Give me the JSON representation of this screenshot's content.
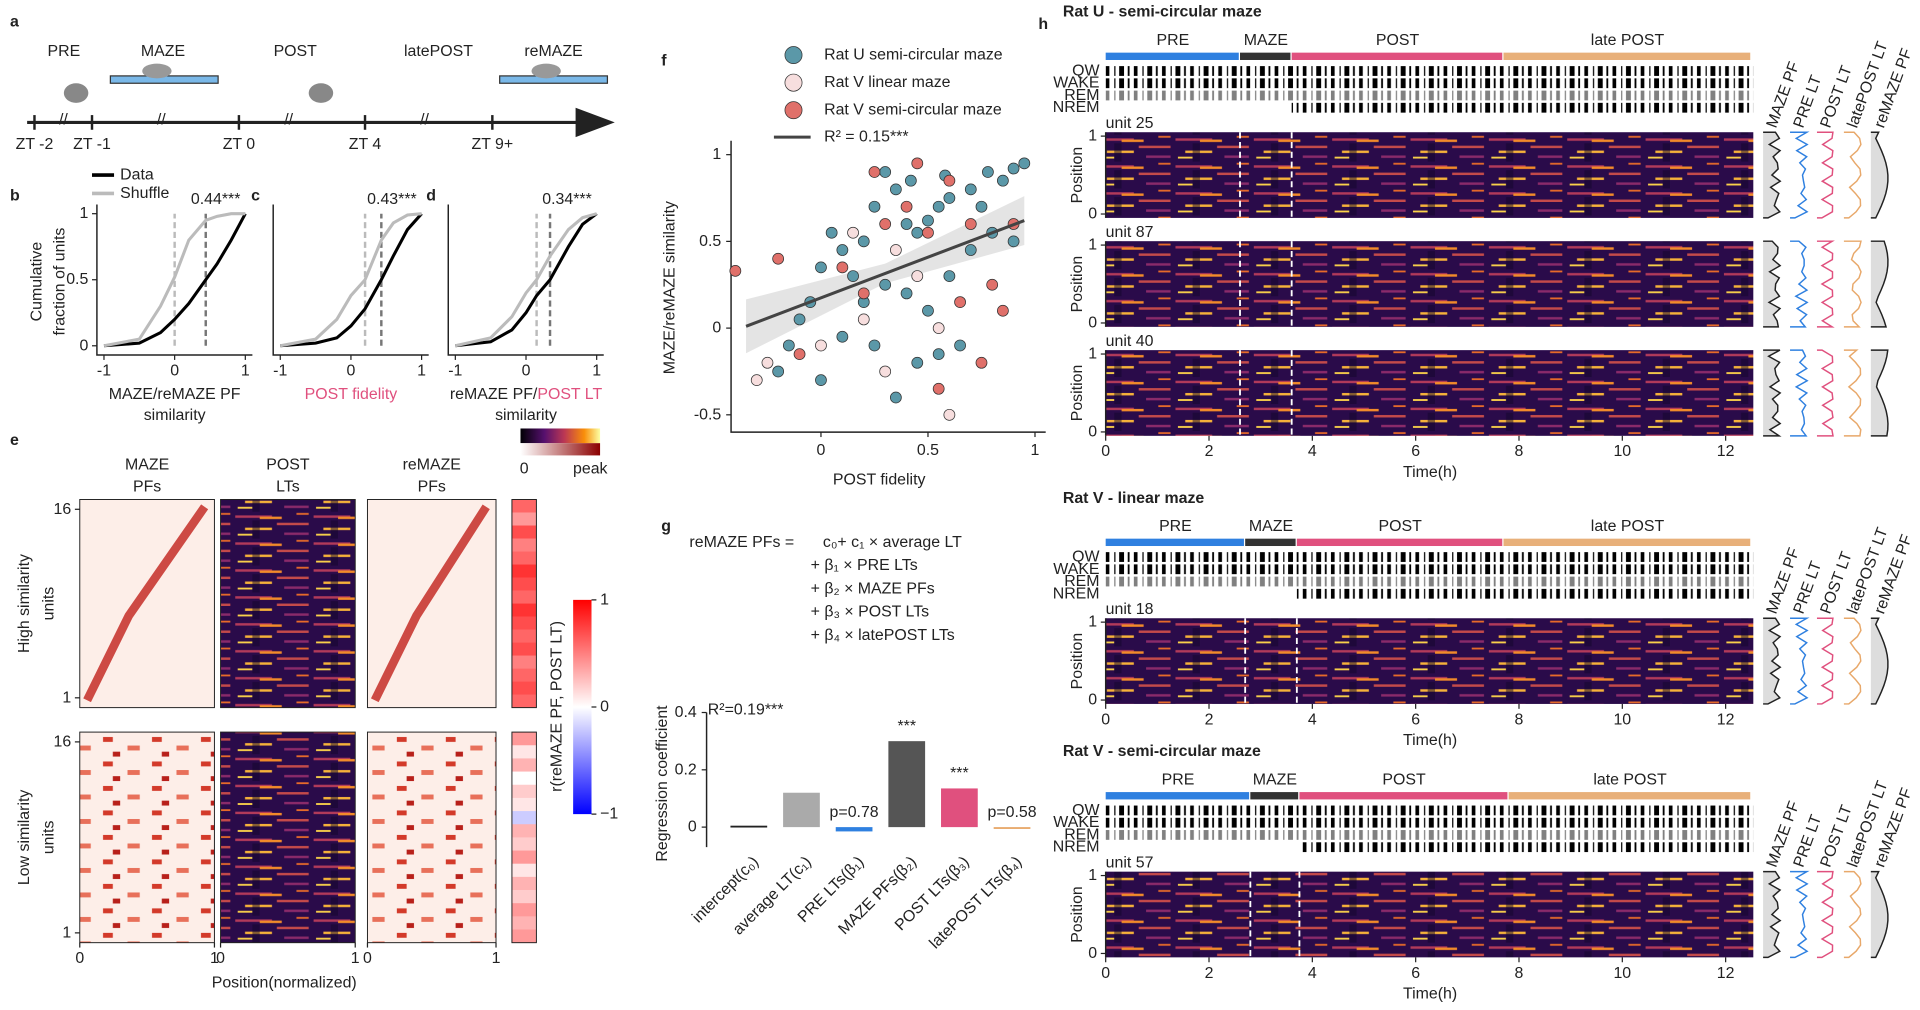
{
  "panel_labels": [
    "a",
    "b",
    "c",
    "d",
    "e",
    "f",
    "g",
    "h"
  ],
  "timeline": {
    "epochs": [
      {
        "text": "PRE",
        "color": "#2f80e0"
      },
      {
        "text": "MAZE",
        "color": "#222222"
      },
      {
        "text": "POST",
        "color": "#e0507e"
      },
      {
        "text": "latePOST",
        "color": "#e8a86a"
      },
      {
        "text": "reMAZE",
        "color": "#222222"
      }
    ],
    "ticks": [
      "ZT -2",
      "ZT -1",
      "ZT 0",
      "ZT 4",
      "ZT 9+"
    ]
  },
  "chart_data": [
    {
      "type": "line",
      "legend": true,
      "xlim": [
        -1.1,
        1.1
      ],
      "ylim": [
        -0.07,
        1.07
      ],
      "xticks": [
        -1,
        0,
        1
      ],
      "yticks": [
        0,
        0.5,
        1
      ],
      "ylabel": [
        "Cumulative",
        "fraction of units"
      ],
      "xlabel": [
        [
          {
            "text": "MAZE/reMAZE PF"
          }
        ],
        [
          {
            "text": "similarity"
          }
        ]
      ],
      "x": [
        -1,
        -0.5,
        -0.2,
        0,
        0.2,
        0.44,
        0.6,
        0.8,
        1
      ],
      "series": [
        {
          "name": "Data",
          "color": "#000000",
          "values": [
            0,
            0.02,
            0.1,
            0.2,
            0.32,
            0.5,
            0.62,
            0.8,
            1
          ]
        },
        {
          "name": "Shuffle",
          "color": "#bbbbbb",
          "values": [
            0,
            0.05,
            0.3,
            0.52,
            0.8,
            0.95,
            0.98,
            1,
            1
          ]
        }
      ],
      "medians": [
        0,
        0.44
      ],
      "annotation": "0.44***"
    },
    {
      "type": "line",
      "xlim": [
        -1.1,
        1.1
      ],
      "ylim": [
        -0.07,
        1.07
      ],
      "xticks": [
        -1,
        0,
        1
      ],
      "xlabel": [
        [
          {
            "text": "POST fidelity",
            "color": "#e0507e"
          }
        ]
      ],
      "x": [
        -1,
        -0.5,
        -0.2,
        0,
        0.2,
        0.43,
        0.6,
        0.8,
        1
      ],
      "series": [
        {
          "color": "#000000",
          "values": [
            0,
            0.02,
            0.06,
            0.15,
            0.28,
            0.5,
            0.68,
            0.88,
            1
          ]
        },
        {
          "color": "#bbbbbb",
          "values": [
            0,
            0.05,
            0.2,
            0.38,
            0.5,
            0.8,
            0.93,
            0.99,
            1
          ]
        }
      ],
      "medians": [
        0.2,
        0.43
      ],
      "annotation": "0.43***"
    },
    {
      "type": "line",
      "xlim": [
        -1.1,
        1.1
      ],
      "ylim": [
        -0.07,
        1.07
      ],
      "xticks": [
        -1,
        0,
        1
      ],
      "xlabel": [
        [
          {
            "text": "reMAZE PF/"
          },
          {
            "text": "POST LT",
            "color": "#e0507e"
          }
        ],
        [
          {
            "text": "similarity"
          }
        ]
      ],
      "x": [
        -1,
        -0.5,
        -0.2,
        0,
        0.15,
        0.34,
        0.6,
        0.8,
        1
      ],
      "series": [
        {
          "color": "#000000",
          "values": [
            0,
            0.03,
            0.12,
            0.25,
            0.38,
            0.5,
            0.75,
            0.92,
            1
          ]
        },
        {
          "color": "#bbbbbb",
          "values": [
            0,
            0.06,
            0.22,
            0.4,
            0.5,
            0.68,
            0.88,
            0.97,
            1
          ]
        }
      ],
      "medians": [
        0.15,
        0.34
      ],
      "annotation": "0.34***"
    },
    {
      "type": "heatmap",
      "columns": [
        {
          "title": [
            "MAZE",
            "PFs"
          ],
          "color": "#222222"
        },
        {
          "title": [
            "POST",
            "LTs"
          ],
          "color": "#e0507e"
        },
        {
          "title": [
            "reMAZE",
            "PFs"
          ],
          "color": "#222222"
        }
      ],
      "groups": [
        {
          "label": [
            "High similarity",
            "units"
          ],
          "yticks": [
            16,
            1
          ],
          "r": [
            0.6,
            0.4,
            0.7,
            0.5,
            0.6,
            0.8,
            0.7,
            0.6,
            0.8,
            0.7,
            0.6,
            0.7,
            0.5,
            0.6,
            0.7,
            0.6
          ]
        },
        {
          "label": [
            "Low similarity",
            "units"
          ],
          "yticks": [
            16,
            1
          ],
          "r": [
            0.4,
            0.1,
            0.3,
            0.0,
            0.2,
            0.1,
            -0.2,
            0.3,
            0.2,
            0.4,
            0.1,
            0.3,
            0.2,
            0.4,
            0.3,
            0.4
          ]
        }
      ],
      "xticks": [
        0,
        1
      ],
      "xlabel": "Position(normalized)",
      "colorbar": {
        "min": 0,
        "max": "peak"
      },
      "r_colorbar": {
        "label": "r(reMAZE PF, POST LT)",
        "lim": [
          -1,
          1
        ],
        "ticks": [
          1,
          0,
          {
            "value": -1,
            "label": "−1"
          }
        ]
      }
    },
    {
      "type": "scatter",
      "xlim": [
        -0.42,
        1.05
      ],
      "ylim": [
        -0.6,
        1.08
      ],
      "xticks": [
        0,
        0.5,
        1
      ],
      "yticks": [
        -0.5,
        0,
        0.5,
        1
      ],
      "xlabel": "POST fidelity",
      "xlabel_color": "#e0507e",
      "ylabel": "MAZE/reMAZE similarity",
      "series": [
        {
          "name": "Rat U semi-circular maze",
          "color": "#5b98a8",
          "x": [
            0.9,
            0.85,
            0.95,
            0.78,
            0.7,
            0.6,
            0.55,
            0.5,
            0.45,
            0.4,
            0.35,
            0.3,
            0.25,
            0.2,
            0.1,
            0.05,
            0,
            -0.05,
            -0.1,
            -0.15,
            -0.2,
            0,
            0.1,
            0.2,
            0.3,
            0.4,
            0.5,
            0.6,
            0.7,
            0.8,
            0.65,
            0.55,
            0.35,
            0.45,
            0.25,
            0.15,
            0.9,
            0.75,
            0.58,
            0.42
          ],
          "values": [
            0.92,
            0.85,
            0.95,
            0.9,
            0.8,
            0.75,
            0.7,
            0.62,
            0.55,
            0.6,
            0.8,
            0.9,
            0.7,
            0.5,
            0.45,
            0.55,
            0.35,
            0.15,
            0.05,
            -0.1,
            -0.25,
            -0.3,
            -0.05,
            0.15,
            0.25,
            0.2,
            0.1,
            0.3,
            0.45,
            0.55,
            -0.1,
            -0.15,
            -0.4,
            -0.2,
            -0.1,
            0.3,
            0.5,
            0.7,
            0.88,
            0.85
          ]
        },
        {
          "name": "Rat V linear maze",
          "color": "#f7dede",
          "x": [
            -0.3,
            -0.25,
            0,
            0.2,
            0.35,
            0.45,
            0.55,
            0.6,
            0.3,
            0.15
          ],
          "values": [
            -0.3,
            -0.2,
            -0.1,
            0.05,
            0.45,
            0.3,
            0,
            -0.5,
            -0.25,
            0.55
          ]
        },
        {
          "name": "Rat V semi-circular maze",
          "color": "#e0706a",
          "x": [
            -0.4,
            -0.2,
            -0.1,
            0.1,
            0.25,
            0.4,
            0.5,
            0.6,
            0.7,
            0.8,
            0.85,
            0.9,
            0.75,
            0.55,
            0.3,
            0.2,
            0.65,
            0.45
          ],
          "values": [
            0.33,
            0.4,
            -0.15,
            0.35,
            0.9,
            0.7,
            0.55,
            0.85,
            0.6,
            0.25,
            0.1,
            0.6,
            -0.2,
            -0.35,
            0.6,
            0.2,
            0.15,
            0.95
          ]
        }
      ],
      "fit": {
        "name": "R² = 0.15***",
        "color": "#444444",
        "x": [
          -0.35,
          0.95
        ],
        "values": [
          0.01,
          0.62
        ]
      }
    },
    {
      "type": "bar",
      "ylim": [
        -0.07,
        0.4
      ],
      "yticks": [
        0,
        0.2,
        0.4
      ],
      "ylabel": "Regression coefficient",
      "stat": "R²=0.19***",
      "equation": {
        "lhs": "reMAZE PFs =",
        "terms": [
          {
            "text": "c₀+ c₁ × average LT",
            "color": "#888888"
          },
          {
            "text": "+ β₁ × PRE LTs",
            "color": "#2f80e0"
          },
          {
            "text": "+ β₂ × MAZE PFs",
            "color": "#222222"
          },
          {
            "text": "+ β₃ × POST LTs",
            "color": "#e0507e"
          },
          {
            "text": "+ β₄ × latePOST LTs",
            "color": "#e8a86a"
          }
        ]
      },
      "categories": [
        "intercept(c₀)",
        "average LT(c₁)",
        "PRE LTs(β₁)",
        "MAZE PFs(β₂)",
        "POST LTs(β₃)",
        "latePOST LTs(β₄)"
      ],
      "label_colors": [
        "#222222",
        "#222222",
        "#2f80e0",
        "#222222",
        "#e0507e",
        "#e8a86a"
      ],
      "colors": [
        "#222222",
        "#aaaaaa",
        "#2f80e0",
        "#555555",
        "#e0507e",
        "#e8a86a"
      ],
      "values": [
        0.005,
        0.12,
        -0.015,
        0.3,
        0.135,
        -0.005
      ],
      "significance": [
        null,
        null,
        "p=0.78",
        "***",
        "***",
        "p=0.58"
      ]
    },
    {
      "type": "raster",
      "title": "Rat U - semi-circular maze",
      "epochs": [
        {
          "name": "PRE",
          "start": 0,
          "end": 2.6,
          "color": "#2f80e0"
        },
        {
          "name": "MAZE",
          "start": 2.6,
          "end": 3.6,
          "color": "#333333"
        },
        {
          "name": "POST",
          "start": 3.6,
          "end": 7.7,
          "color": "#e0507e"
        },
        {
          "name": "late POST",
          "start": 7.7,
          "end": 12.5,
          "color": "#e8b07a"
        }
      ],
      "states": [
        "QW",
        "WAKE",
        "REM",
        "NREM"
      ],
      "units": [
        "unit 25",
        "unit 87",
        "unit 40"
      ],
      "xlim": [
        0,
        12.55
      ],
      "ylim": [
        -0.05,
        1.05
      ],
      "xticks": [
        0,
        2,
        4,
        6,
        8,
        10,
        12
      ],
      "yticks": [
        0,
        1
      ],
      "ylabel": "Position",
      "xlabel": "Time(h)",
      "profile_labels": [
        "MAZE PF",
        "PRE LT",
        "POST LT",
        "latePOST LT",
        "reMAZE PF"
      ],
      "profile_colors": [
        "#222222",
        "#2f80e0",
        "#e0507e",
        "#e8a86a",
        "#222222"
      ]
    },
    {
      "type": "raster",
      "title": "Rat V - linear maze",
      "epochs": [
        {
          "name": "PRE",
          "start": 0,
          "end": 2.7,
          "color": "#2f80e0"
        },
        {
          "name": "MAZE",
          "start": 2.7,
          "end": 3.7,
          "color": "#333333"
        },
        {
          "name": "POST",
          "start": 3.7,
          "end": 7.7,
          "color": "#e0507e"
        },
        {
          "name": "late POST",
          "start": 7.7,
          "end": 12.5,
          "color": "#e8b07a"
        }
      ],
      "states": [
        "QW",
        "WAKE",
        "REM",
        "NREM"
      ],
      "units": [
        "unit 18"
      ],
      "xlim": [
        0,
        12.55
      ],
      "ylim": [
        -0.05,
        1.05
      ],
      "xticks": [
        0,
        2,
        4,
        6,
        8,
        10,
        12
      ],
      "yticks": [
        0,
        1
      ],
      "ylabel": "Position",
      "xlabel": "Time(h)",
      "profile_labels": [
        "MAZE PF",
        "PRE LT",
        "POST LT",
        "latePOST LT",
        "reMAZE PF"
      ],
      "profile_colors": [
        "#222222",
        "#2f80e0",
        "#e0507e",
        "#e8a86a",
        "#222222"
      ]
    },
    {
      "type": "raster",
      "title": "Rat V - semi-circular maze",
      "epochs": [
        {
          "name": "PRE",
          "start": 0,
          "end": 2.8,
          "color": "#2f80e0"
        },
        {
          "name": "MAZE",
          "start": 2.8,
          "end": 3.75,
          "color": "#333333"
        },
        {
          "name": "POST",
          "start": 3.75,
          "end": 7.8,
          "color": "#e0507e"
        },
        {
          "name": "late POST",
          "start": 7.8,
          "end": 12.5,
          "color": "#e8b07a"
        }
      ],
      "states": [
        "QW",
        "WAKE",
        "REM",
        "NREM"
      ],
      "units": [
        "unit 57"
      ],
      "xlim": [
        0,
        12.55
      ],
      "ylim": [
        -0.05,
        1.05
      ],
      "xticks": [
        0,
        2,
        4,
        6,
        8,
        10,
        12
      ],
      "yticks": [
        0,
        1
      ],
      "ylabel": "Position",
      "xlabel": "Time(h)",
      "profile_labels": [
        "MAZE PF",
        "PRE LT",
        "POST LT",
        "latePOST LT",
        "reMAZE PF"
      ],
      "profile_colors": [
        "#222222",
        "#2f80e0",
        "#e0507e",
        "#e8a86a",
        "#222222"
      ]
    }
  ]
}
